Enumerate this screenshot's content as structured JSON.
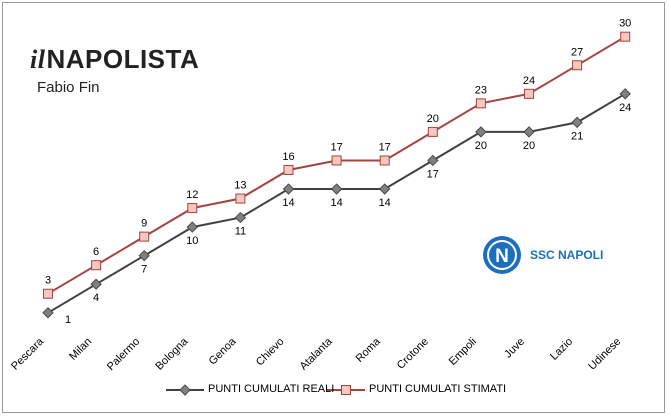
{
  "brand": {
    "name_prefix": "il",
    "name_main": "NAPOLISTA",
    "author": "Fabio Fin"
  },
  "club": {
    "name": "SSC NAPOLI",
    "badge_letter": "N"
  },
  "colors": {
    "real": "#404040",
    "estimated": "#a5433e",
    "estimated_marker_fill": "#f4c7c0",
    "club": "#1c6fc0"
  },
  "chart_data": {
    "type": "line",
    "title": "",
    "xlabel": "",
    "ylabel": "",
    "categories": [
      "Pescara",
      "Milan",
      "Palermo",
      "Bologna",
      "Genoa",
      "Chievo",
      "Atalanta",
      "Roma",
      "Crotone",
      "Empoli",
      "Juve",
      "Lazio",
      "Udinese"
    ],
    "series": [
      {
        "name": "PUNTI CUMULATI REALI",
        "values": [
          1,
          4,
          7,
          10,
          11,
          14,
          14,
          14,
          17,
          20,
          20,
          21,
          24
        ],
        "marker": "diamond",
        "labels": "below"
      },
      {
        "name": "PUNTI CUMULATI STIMATI",
        "values": [
          3,
          6,
          9,
          12,
          13,
          16,
          17,
          17,
          20,
          23,
          24,
          27,
          30
        ],
        "marker": "square",
        "labels": "above"
      }
    ],
    "ylim": [
      0,
      31
    ],
    "grid": false,
    "legend": "bottom"
  }
}
